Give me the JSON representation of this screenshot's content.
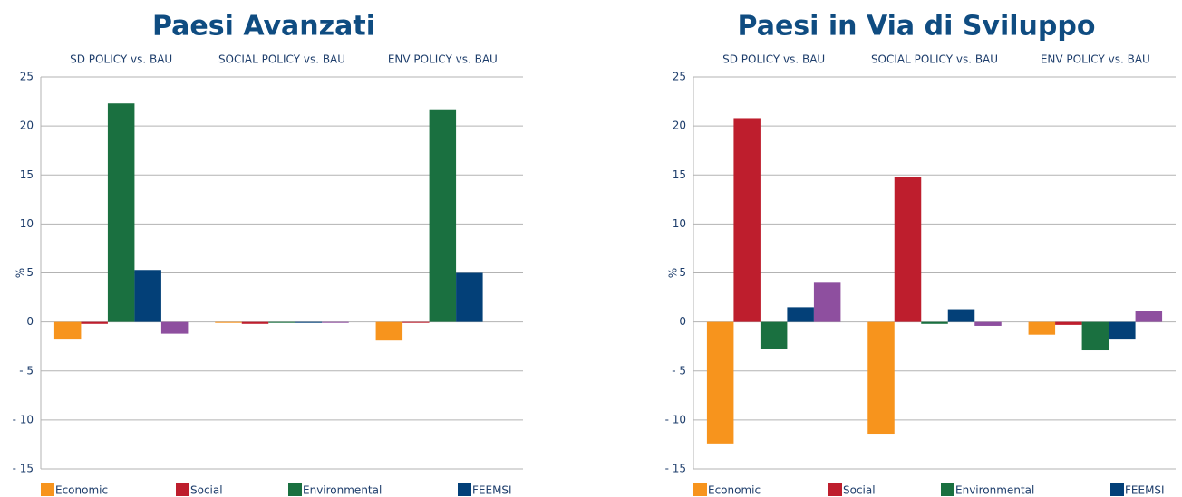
{
  "chart_data": [
    {
      "type": "bar",
      "title": "Paesi Avanzati",
      "y_label": "%",
      "categories": [
        "SD POLICY vs. BAU",
        "SOCIAL POLICY vs. BAU",
        "ENV POLICY vs. BAU"
      ],
      "series": [
        {
          "name": "Economic",
          "color": "#f7941d",
          "values": [
            -1.8,
            -0.1,
            -1.9
          ]
        },
        {
          "name": "Social",
          "color": "#be1e2d",
          "values": [
            -0.2,
            -0.2,
            -0.1
          ]
        },
        {
          "name": "Environmental",
          "color": "#1a7040",
          "values": [
            22.3,
            -0.1,
            21.7
          ]
        },
        {
          "name": "FEEMSI",
          "color": "#034078",
          "values": [
            5.3,
            -0.1,
            5.0
          ]
        },
        {
          "name": null,
          "color": "#8e4f9f",
          "values": [
            -1.2,
            -0.1,
            0
          ]
        }
      ],
      "ylim": [
        -15,
        25
      ],
      "yticks": [
        25,
        20,
        15,
        10,
        5,
        0,
        {
          "value": -5,
          "label": "- 5"
        },
        {
          "value": -10,
          "label": "- 10"
        },
        {
          "value": -15,
          "label": "- 15"
        }
      ],
      "grid": true
    },
    {
      "type": "bar",
      "title": "Paesi in Via di Sviluppo",
      "y_label": "%",
      "categories": [
        "SD POLICY vs. BAU",
        "SOCIAL POLICY vs. BAU",
        "ENV POLICY vs. BAU"
      ],
      "series": [
        {
          "name": "Economic",
          "color": "#f7941d",
          "values": [
            -12.4,
            -11.4,
            -1.3
          ]
        },
        {
          "name": "Social",
          "color": "#be1e2d",
          "values": [
            20.8,
            14.8,
            -0.3
          ]
        },
        {
          "name": "Environmental",
          "color": "#1a7040",
          "values": [
            -2.8,
            -0.2,
            -2.9
          ]
        },
        {
          "name": "FEEMSI",
          "color": "#034078",
          "values": [
            1.5,
            1.3,
            -1.8
          ]
        },
        {
          "name": null,
          "color": "#8e4f9f",
          "values": [
            4.0,
            -0.4,
            1.1
          ]
        }
      ],
      "ylim": [
        -15,
        25
      ],
      "yticks": [
        25,
        20,
        15,
        10,
        5,
        0,
        {
          "value": -5,
          "label": "- 5"
        },
        {
          "value": -10,
          "label": "- 10"
        },
        {
          "value": -15,
          "label": "- 15"
        }
      ],
      "grid": true
    }
  ]
}
